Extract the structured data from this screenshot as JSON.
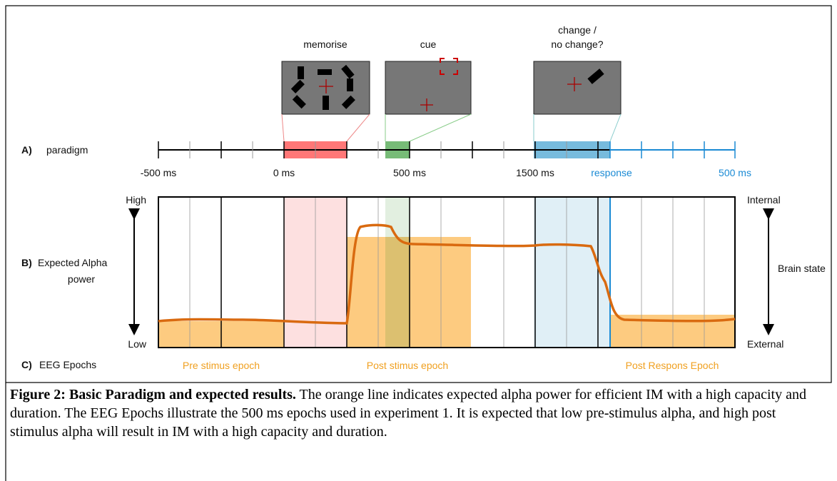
{
  "panel_a": {
    "label": "A)",
    "title": "paradigm",
    "screens": [
      {
        "label": [
          "memorise"
        ]
      },
      {
        "label": [
          "cue"
        ]
      },
      {
        "label": [
          "change /",
          "no change?"
        ]
      }
    ],
    "tick_labels": [
      "-500 ms",
      "0 ms",
      "500 ms",
      "1500 ms",
      "response",
      "500 ms"
    ]
  },
  "panel_b": {
    "label": "B)",
    "title": [
      "Expected Alpha",
      "power"
    ],
    "high": "High",
    "low": "Low",
    "internal": "Internal",
    "external": "External",
    "brain_state": "Brain state"
  },
  "panel_c": {
    "label": "C)",
    "title": "EEG Epochs",
    "epochs": [
      "Pre stimus epoch",
      "Post stimus epoch",
      "Post Respons Epoch"
    ]
  },
  "caption": {
    "bold": "Figure 2: Basic Paradigm and expected results.",
    "text": " The orange line indicates expected alpha power for efficient IM with a high capacity and duration. The EEG Epochs illustrate the 500 ms epochs used in experiment 1. It is expected that low pre-stimulus alpha, and high post stimulus alpha will result in IM with a high capacity and duration."
  }
}
